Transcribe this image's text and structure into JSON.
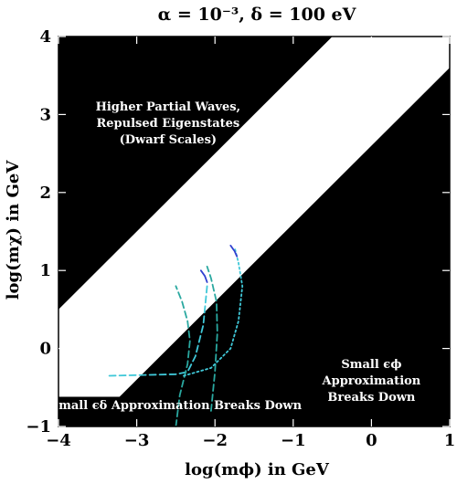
{
  "chart_data": {
    "type": "line",
    "title": "α = 10⁻³,  δ = 100 eV",
    "xlabel": "log(mϕ) in GeV",
    "ylabel": "log(mχ) in GeV",
    "xlim": [
      -4,
      1
    ],
    "ylim": [
      -1,
      4
    ],
    "x_ticks": [
      "−4",
      "−3",
      "−2",
      "−1",
      "0",
      "1"
    ],
    "y_ticks": [
      "−1",
      "0",
      "1",
      "2",
      "3",
      "4"
    ],
    "grid": false,
    "colors": {
      "region": "#000000",
      "band": "#ffffff",
      "curve_cyan": "#40c8d8",
      "curve_teal": "#2aa8a0",
      "curve_blue": "#3040d0"
    },
    "regions": [
      {
        "name": "upper-left-region",
        "label": "Higher Partial Waves, Repulsed Eigenstates (Dwarf Scales)",
        "label_lines": [
          "Higher Partial Waves,",
          "Repulsed Eigenstates",
          "(Dwarf Scales)"
        ],
        "label_pos": [
          -2.6,
          3.05
        ],
        "polygon": [
          [
            -4,
            0.5
          ],
          [
            -4,
            4
          ],
          [
            -0.5,
            4
          ],
          [
            -4,
            0.5
          ]
        ]
      },
      {
        "name": "lower-right-region",
        "label": "Small ϵϕ Approximation Breaks Down",
        "label_lines": [
          "Small ϵϕ",
          "Approximation",
          "Breaks Down"
        ],
        "label_pos": [
          0.0,
          -0.25
        ],
        "polygon": [
          [
            -3.6,
            -1
          ],
          [
            1,
            3.6
          ],
          [
            1,
            -1
          ],
          [
            -3.6,
            -1
          ]
        ]
      },
      {
        "name": "bottom-strip-region",
        "label": "Small ϵδ Approximation Breaks Down",
        "label_lines": [
          "Small ϵδ Approximation Breaks Down"
        ],
        "label_pos": [
          -2.5,
          -0.78
        ],
        "polygon": [
          [
            -4,
            -1
          ],
          [
            -4,
            -0.62
          ],
          [
            1,
            -0.62
          ],
          [
            1,
            -1
          ],
          [
            -4,
            -1
          ]
        ]
      }
    ],
    "series": [
      {
        "style": "dash",
        "color": "curve_cyan",
        "x": [
          -3.35,
          -2.9,
          -2.5,
          -2.35,
          -2.25,
          -2.15,
          -2.1
        ],
        "y": [
          -0.35,
          -0.34,
          -0.33,
          -0.3,
          -0.1,
          0.3,
          0.8
        ]
      },
      {
        "style": "dash",
        "color": "curve_teal",
        "x": [
          -2.5,
          -2.45,
          -2.35,
          -2.32,
          -2.35,
          -2.42,
          -2.5
        ],
        "y": [
          -1.0,
          -0.6,
          -0.2,
          0.1,
          0.35,
          0.6,
          0.8
        ]
      },
      {
        "style": "dash",
        "color": "curve_teal",
        "x": [
          -2.05,
          -2.0,
          -1.97,
          -1.98,
          -2.05,
          -2.1
        ],
        "y": [
          -0.8,
          -0.3,
          0.2,
          0.6,
          0.9,
          1.05
        ]
      },
      {
        "style": "dot",
        "color": "curve_cyan",
        "x": [
          -2.4,
          -2.05,
          -1.8,
          -1.7,
          -1.65,
          -1.7,
          -1.75
        ],
        "y": [
          -0.35,
          -0.25,
          0.0,
          0.35,
          0.8,
          1.1,
          1.3
        ]
      },
      {
        "style": "solid",
        "color": "curve_blue",
        "x": [
          -2.18,
          -2.13,
          -2.1
        ],
        "y": [
          1.0,
          0.93,
          0.85
        ]
      },
      {
        "style": "solid",
        "color": "curve_blue",
        "x": [
          -1.8,
          -1.75,
          -1.72
        ],
        "y": [
          1.32,
          1.25,
          1.18
        ]
      }
    ]
  }
}
